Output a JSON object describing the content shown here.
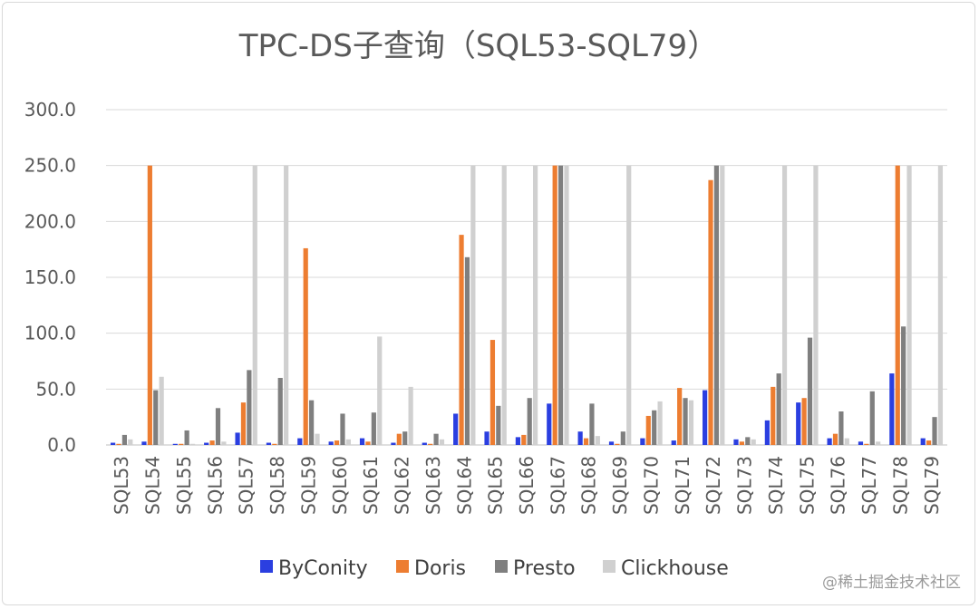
{
  "watermark": "@稀土掘金技术社区",
  "chart_data": {
    "type": "bar",
    "title": "TPC-DS子查询（SQL53-SQL79）",
    "xlabel": "",
    "ylabel": "",
    "ylim": [
      0,
      300
    ],
    "yticks": [
      "0.0",
      "50.0",
      "100.0",
      "150.0",
      "200.0",
      "250.0",
      "300.0"
    ],
    "grid": true,
    "legend_position": "bottom",
    "categories": [
      "SQL53",
      "SQL54",
      "SQL55",
      "SQL56",
      "SQL57",
      "SQL58",
      "SQL59",
      "SQL60",
      "SQL61",
      "SQL62",
      "SQL63",
      "SQL64",
      "SQL65",
      "SQL66",
      "SQL67",
      "SQL68",
      "SQL69",
      "SQL70",
      "SQL71",
      "SQL72",
      "SQL73",
      "SQL74",
      "SQL75",
      "SQL76",
      "SQL77",
      "SQL78",
      "SQL79"
    ],
    "series": [
      {
        "name": "ByConity",
        "color": "#2b3fe0",
        "values": [
          2,
          3,
          1,
          2,
          11,
          2,
          6,
          3,
          6,
          2,
          2,
          28,
          12,
          7,
          37,
          12,
          3,
          6,
          4,
          49,
          5,
          22,
          38,
          6,
          3,
          64,
          6
        ]
      },
      {
        "name": "Doris",
        "color": "#ed7d31",
        "values": [
          1,
          250,
          1,
          4,
          38,
          1,
          176,
          4,
          3,
          10,
          1,
          188,
          94,
          9,
          250,
          6,
          1,
          26,
          51,
          237,
          3,
          52,
          42,
          10,
          1,
          250,
          4
        ]
      },
      {
        "name": "Presto",
        "color": "#7f7f7f",
        "values": [
          9,
          49,
          13,
          33,
          67,
          60,
          40,
          28,
          29,
          12,
          10,
          168,
          35,
          42,
          250,
          37,
          12,
          31,
          42,
          250,
          7,
          64,
          96,
          30,
          48,
          106,
          25
        ]
      },
      {
        "name": "Clickhouse",
        "color": "#d0d0d0",
        "values": [
          5,
          61,
          1,
          3,
          250,
          250,
          10,
          5,
          97,
          52,
          5,
          250,
          250,
          250,
          250,
          8,
          250,
          39,
          40,
          250,
          5,
          250,
          250,
          6,
          3,
          250,
          250
        ]
      }
    ]
  }
}
